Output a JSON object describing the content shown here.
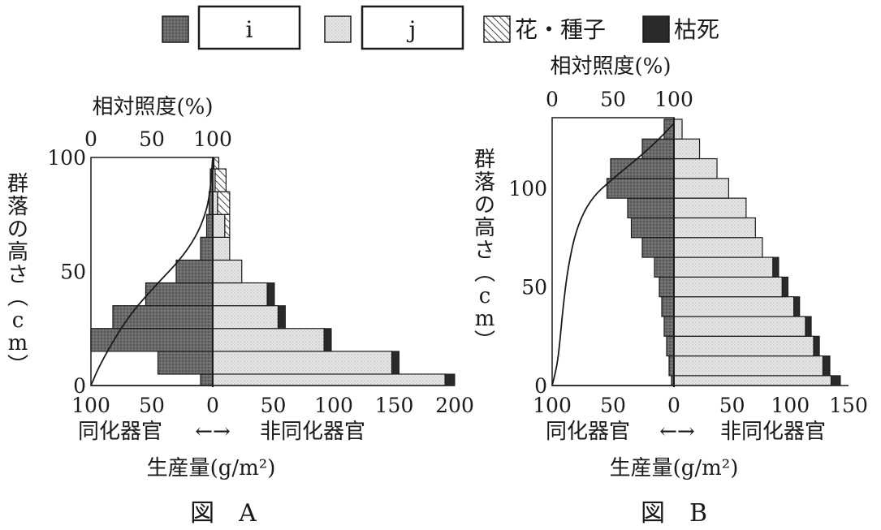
{
  "legend": {
    "items": [
      {
        "key": "assim",
        "label": "i",
        "boxed": true
      },
      {
        "key": "nonassim",
        "label": "j",
        "boxed": true
      },
      {
        "key": "flower",
        "label": "花・種子",
        "boxed": false
      },
      {
        "key": "dead",
        "label": "枯死",
        "boxed": false
      }
    ]
  },
  "colors": {
    "assim": "#6e6e6e",
    "nonassim": "#e6e6e6",
    "dead": "#2a2a2a",
    "flower": "#ffffff",
    "line": "#1a1a1a"
  },
  "figures": [
    {
      "caption": "図　A",
      "top_axis_title": "相対照度(%)",
      "y_axis_title": "群落の高さ(cm)",
      "dir_left": "同化器官",
      "dir_right": "非同化器官",
      "x_axis_title": "生産量(g/m²)"
    },
    {
      "caption": "図　B",
      "top_axis_title": "相対照度(%)",
      "y_axis_title": "群落の高さ(cm)",
      "dir_left": "同化器官",
      "dir_right": "非同化器官",
      "x_axis_title": "生産量(g/m²)"
    }
  ],
  "chart_data": [
    {
      "type": "bar",
      "name": "A",
      "y_axis": {
        "range": [
          0,
          100
        ],
        "ticks": [
          0,
          50,
          100
        ],
        "unit": "cm"
      },
      "x_axis": {
        "left_ticks": [
          100,
          50,
          0
        ],
        "right_ticks": [
          0,
          50,
          100,
          150,
          200
        ],
        "left_range": [
          0,
          100
        ],
        "right_range": [
          0,
          200
        ]
      },
      "top_axis": {
        "range": [
          0,
          100
        ],
        "ticks": [
          0,
          50,
          100
        ]
      },
      "layers": [
        {
          "y0": 0,
          "y1": 5,
          "assim": 10,
          "nonassim": 192,
          "dead": 8
        },
        {
          "y0": 5,
          "y1": 15,
          "assim": 45,
          "nonassim": 148,
          "dead": 6
        },
        {
          "y0": 15,
          "y1": 25,
          "assim": 100,
          "nonassim": 92,
          "dead": 6
        },
        {
          "y0": 25,
          "y1": 35,
          "assim": 82,
          "nonassim": 54,
          "dead": 6
        },
        {
          "y0": 35,
          "y1": 45,
          "assim": 55,
          "nonassim": 45,
          "dead": 6
        },
        {
          "y0": 45,
          "y1": 55,
          "assim": 30,
          "nonassim": 24,
          "dead": 0
        },
        {
          "y0": 55,
          "y1": 65,
          "assim": 10,
          "nonassim": 14,
          "dead": 0
        },
        {
          "y0": 65,
          "y1": 75,
          "assim": 5,
          "nonassim": 10,
          "flower": 4
        },
        {
          "y0": 75,
          "y1": 85,
          "assim": 3,
          "nonassim": 4,
          "flower": 10
        },
        {
          "y0": 85,
          "y1": 95,
          "assim": 2,
          "nonassim": 2,
          "flower": 9
        },
        {
          "y0": 95,
          "y1": 100,
          "assim": 0,
          "nonassim": 1,
          "flower": 4
        }
      ],
      "light_curve": [
        [
          0,
          0
        ],
        [
          8,
          10
        ],
        [
          30,
          30
        ],
        [
          55,
          45
        ],
        [
          73,
          55
        ],
        [
          86,
          65
        ],
        [
          94,
          75
        ],
        [
          98,
          85
        ],
        [
          100,
          100
        ]
      ]
    },
    {
      "type": "bar",
      "name": "B",
      "y_axis": {
        "range": [
          0,
          120
        ],
        "ticks": [
          0,
          50,
          100
        ],
        "unit": "cm"
      },
      "x_axis": {
        "left_ticks": [
          100,
          50,
          0
        ],
        "right_ticks": [
          0,
          50,
          100,
          150
        ],
        "left_range": [
          0,
          100
        ],
        "right_range": [
          0,
          150
        ]
      },
      "top_axis": {
        "range": [
          0,
          100
        ],
        "ticks": [
          0,
          50,
          100
        ]
      },
      "layers": [
        {
          "y0": 0,
          "y1": 5,
          "assim": 2,
          "nonassim": 135,
          "dead": 8
        },
        {
          "y0": 5,
          "y1": 15,
          "assim": 4,
          "nonassim": 128,
          "dead": 6
        },
        {
          "y0": 15,
          "y1": 25,
          "assim": 6,
          "nonassim": 120,
          "dead": 5
        },
        {
          "y0": 25,
          "y1": 35,
          "assim": 8,
          "nonassim": 113,
          "dead": 5
        },
        {
          "y0": 35,
          "y1": 45,
          "assim": 10,
          "nonassim": 103,
          "dead": 5
        },
        {
          "y0": 45,
          "y1": 55,
          "assim": 12,
          "nonassim": 93,
          "dead": 5
        },
        {
          "y0": 55,
          "y1": 65,
          "assim": 16,
          "nonassim": 85,
          "dead": 5
        },
        {
          "y0": 65,
          "y1": 75,
          "assim": 26,
          "nonassim": 76,
          "dead": 0
        },
        {
          "y0": 75,
          "y1": 85,
          "assim": 35,
          "nonassim": 70,
          "dead": 0
        },
        {
          "y0": 85,
          "y1": 95,
          "assim": 38,
          "nonassim": 62,
          "dead": 0
        },
        {
          "y0": 95,
          "y1": 105,
          "assim": 55,
          "nonassim": 47,
          "dead": 0
        },
        {
          "y0": 105,
          "y1": 115,
          "assim": 52,
          "nonassim": 37,
          "dead": 0
        },
        {
          "y0": 115,
          "y1": 125,
          "assim": 26,
          "nonassim": 22,
          "dead": 0
        },
        {
          "y0": 125,
          "y1": 135,
          "assim": 8,
          "nonassim": 7,
          "dead": 0
        }
      ],
      "light_curve": [
        [
          0,
          0
        ],
        [
          4,
          10
        ],
        [
          6,
          20
        ],
        [
          9,
          40
        ],
        [
          13,
          60
        ],
        [
          20,
          80
        ],
        [
          32,
          95
        ],
        [
          50,
          105
        ],
        [
          70,
          115
        ],
        [
          88,
          125
        ],
        [
          100,
          133
        ]
      ]
    }
  ]
}
